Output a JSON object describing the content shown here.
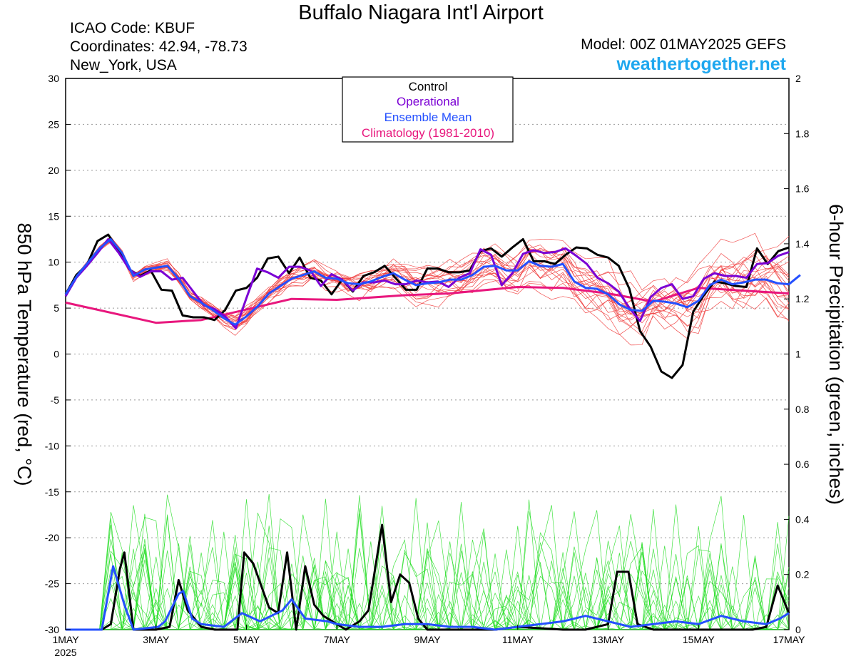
{
  "header": {
    "title": "Buffalo Niagara Int'l Airport",
    "icao": "ICAO Code: KBUF",
    "coords": "Coordinates: 42.94, -78.73",
    "location": "New_York, USA",
    "model": "Model: 00Z 01MAY2025 GEFS",
    "site": "weathertogether.net"
  },
  "chart_data": {
    "type": "line",
    "left_axis": {
      "label": "850 hPa Temperature (red, °C)",
      "ylim": [
        -30,
        30
      ],
      "ticks": [
        -30,
        -25,
        -20,
        -15,
        -10,
        -5,
        0,
        5,
        10,
        15,
        20,
        25,
        30
      ]
    },
    "right_axis": {
      "label": "6-hour Precipitation (green, inches)",
      "ylim": [
        0,
        2
      ],
      "ticks": [
        "0",
        "0.2",
        "0.4",
        "0.6",
        "0.8",
        "1",
        "1.2",
        "1.4",
        "1.6",
        "1.8",
        "2"
      ]
    },
    "x_axis": {
      "range_days": [
        0,
        16
      ],
      "ticks": [
        {
          "day": 0,
          "label": "1MAY",
          "sub": "2025"
        },
        {
          "day": 2,
          "label": "3MAY"
        },
        {
          "day": 4,
          "label": "5MAY"
        },
        {
          "day": 6,
          "label": "7MAY"
        },
        {
          "day": 8,
          "label": "9MAY"
        },
        {
          "day": 10,
          "label": "11MAY"
        },
        {
          "day": 12,
          "label": "13MAY"
        },
        {
          "day": 14,
          "label": "15MAY"
        },
        {
          "day": 16,
          "label": "17MAY"
        }
      ]
    },
    "grid": "horizontal dotted",
    "legend": {
      "position": "top-center",
      "entries": [
        {
          "name": "Control",
          "color": "#000000"
        },
        {
          "name": "Operational",
          "color": "#7b00d4"
        },
        {
          "name": "Ensemble Mean",
          "color": "#2450ff"
        },
        {
          "name": "Climatology (1981-2010)",
          "color": "#e8177d"
        }
      ]
    },
    "colors": {
      "members_temp": "#f03c3c",
      "members_precip": "#22dd22",
      "control": "#000000",
      "operational": "#7b00d4",
      "mean": "#2450ff",
      "climatology": "#e8177d"
    },
    "series_temp": {
      "control": [
        6.5,
        8.6,
        9.7,
        12.3,
        13,
        11.3,
        9.2,
        8.5,
        9.1,
        7,
        6.9,
        4.2,
        4,
        4,
        3.7,
        4.8,
        6.9,
        7.2,
        8.3,
        10.4,
        10.6,
        8.8,
        10.5,
        8.3,
        8,
        6.5,
        8.1,
        6.8,
        8.5,
        8.9,
        9.6,
        8.3,
        7,
        7,
        9.3,
        9.3,
        8.9,
        8.9,
        9.1,
        11.2,
        11.5,
        10.6,
        11.6,
        12.5,
        10.1,
        10.1,
        9.8,
        10.8,
        11.6,
        11.5,
        10.8,
        10.5,
        9.6,
        7.1,
        2.5,
        0.8,
        -1.9,
        -2.6,
        -1.2,
        4.6,
        6.4,
        7.9,
        7.7,
        7.4,
        7.3,
        11.5,
        9.8,
        11.2,
        11.6
      ],
      "operational": [
        6.3,
        8.3,
        9.6,
        11,
        12.5,
        11,
        9.2,
        8.4,
        9,
        9,
        8.1,
        8.3,
        6.8,
        5.3,
        4.9,
        4.1,
        2.8,
        6.1,
        9.3,
        8.9,
        8.3,
        9.5,
        9.5,
        9.1,
        7.4,
        8.7,
        8.1,
        6.9,
        7.8,
        7.8,
        8,
        7.6,
        7.6,
        8,
        7.8,
        7.9,
        7.3,
        8.3,
        8.8,
        11.4,
        10.8,
        7.5,
        8.8,
        10.9,
        11.3,
        11,
        11.1,
        11.5,
        10.7,
        9.8,
        8.3,
        7.7,
        6.8,
        5,
        3.6,
        6.2,
        7.2,
        7.6,
        6,
        6.3,
        8.2,
        8.8,
        8.5,
        8.5,
        8.3,
        9.8,
        9.9,
        10.7,
        11.1
      ],
      "mean": [
        6.5,
        8.5,
        10,
        11.5,
        12.5,
        11,
        8.5,
        9.2,
        9.4,
        9.6,
        8.2,
        6.3,
        5.6,
        4.8,
        3.9,
        3.2,
        4.1,
        5.2,
        6.6,
        7.4,
        8.2,
        8.6,
        9,
        8.3,
        8.2,
        7.7,
        7.6,
        7.9,
        8.4,
        8.8,
        8.1,
        7.5,
        7.7,
        7.8,
        8.1,
        8.1,
        8.6,
        9.5,
        9.6,
        9.1,
        9.1,
        10.1,
        9.6,
        9.5,
        9.8,
        7.9,
        7.2,
        7.1,
        6.5,
        5.4,
        4.8,
        4.7,
        5.8,
        5.7,
        5.5,
        5.1,
        5.8,
        7.5,
        8.1,
        7.6,
        7.8,
        8.1,
        8.1,
        7.7,
        7.6,
        8.6
      ],
      "climatology": [
        [
          0,
          5.6
        ],
        [
          2,
          3.4
        ],
        [
          3,
          3.7
        ],
        [
          5,
          6
        ],
        [
          6,
          5.9
        ],
        [
          7.5,
          6.4
        ],
        [
          8.5,
          6.6
        ],
        [
          10,
          7.3
        ],
        [
          11,
          7.2
        ],
        [
          12,
          6.6
        ],
        [
          13,
          5.7
        ],
        [
          14,
          7.2
        ],
        [
          16,
          6.6
        ]
      ],
      "members_count": 20
    },
    "series_precip": {
      "control": [
        [
          0,
          0
        ],
        [
          0.5,
          0
        ],
        [
          0.8,
          0
        ],
        [
          1,
          0.02
        ],
        [
          1.2,
          0.22
        ],
        [
          1.3,
          0.28
        ],
        [
          1.5,
          0
        ],
        [
          2,
          0
        ],
        [
          2.3,
          0.01
        ],
        [
          2.5,
          0.18
        ],
        [
          2.7,
          0.07
        ],
        [
          3,
          0.01
        ],
        [
          3.3,
          0
        ],
        [
          3.8,
          0
        ],
        [
          3.95,
          0.28
        ],
        [
          4.15,
          0.24
        ],
        [
          4.5,
          0.08
        ],
        [
          4.7,
          0.06
        ],
        [
          4.9,
          0.28
        ],
        [
          5.1,
          0
        ],
        [
          5.3,
          0.23
        ],
        [
          5.5,
          0.09
        ],
        [
          5.7,
          0.05
        ],
        [
          6.2,
          0
        ],
        [
          6.5,
          0.03
        ],
        [
          6.7,
          0.07
        ],
        [
          7,
          0.38
        ],
        [
          7.2,
          0.1
        ],
        [
          7.4,
          0.2
        ],
        [
          7.6,
          0.17
        ],
        [
          7.8,
          0.04
        ],
        [
          8,
          0
        ],
        [
          8.4,
          0
        ],
        [
          9.5,
          0
        ],
        [
          10,
          0.01
        ],
        [
          11,
          0
        ],
        [
          11.5,
          0
        ],
        [
          12,
          0.02
        ],
        [
          12.2,
          0.21
        ],
        [
          12.45,
          0.21
        ],
        [
          12.65,
          0.02
        ],
        [
          13,
          0
        ],
        [
          14,
          0
        ],
        [
          15,
          0
        ],
        [
          15.2,
          0
        ],
        [
          15.5,
          0.01
        ],
        [
          15.75,
          0.16
        ],
        [
          16,
          0.06
        ]
      ],
      "mean": [
        [
          0,
          0
        ],
        [
          0.8,
          0
        ],
        [
          1.05,
          0.23
        ],
        [
          1.3,
          0.09
        ],
        [
          1.5,
          0
        ],
        [
          2.05,
          0.01
        ],
        [
          2.2,
          0.03
        ],
        [
          2.5,
          0.13
        ],
        [
          2.6,
          0.14
        ],
        [
          2.8,
          0.04
        ],
        [
          3,
          0.02
        ],
        [
          3.5,
          0.01
        ],
        [
          3.9,
          0.06
        ],
        [
          4.3,
          0.03
        ],
        [
          4.8,
          0.07
        ],
        [
          5,
          0.11
        ],
        [
          5.3,
          0.04
        ],
        [
          5.8,
          0.03
        ],
        [
          6,
          0.02
        ],
        [
          6.5,
          0.01
        ],
        [
          7,
          0.01
        ],
        [
          7.5,
          0.02
        ],
        [
          8,
          0.02
        ],
        [
          8.5,
          0.01
        ],
        [
          9,
          0.01
        ],
        [
          9.5,
          0
        ],
        [
          10,
          0.01
        ],
        [
          10.5,
          0.02
        ],
        [
          11,
          0.03
        ],
        [
          11.5,
          0.05
        ],
        [
          12,
          0.03
        ],
        [
          12.5,
          0.01
        ],
        [
          13,
          0.02
        ],
        [
          13.5,
          0.03
        ],
        [
          14,
          0.02
        ],
        [
          14.5,
          0.05
        ],
        [
          15,
          0.03
        ],
        [
          15.5,
          0.02
        ],
        [
          15.8,
          0.04
        ],
        [
          16,
          0.06
        ]
      ],
      "members_count": 20
    }
  }
}
